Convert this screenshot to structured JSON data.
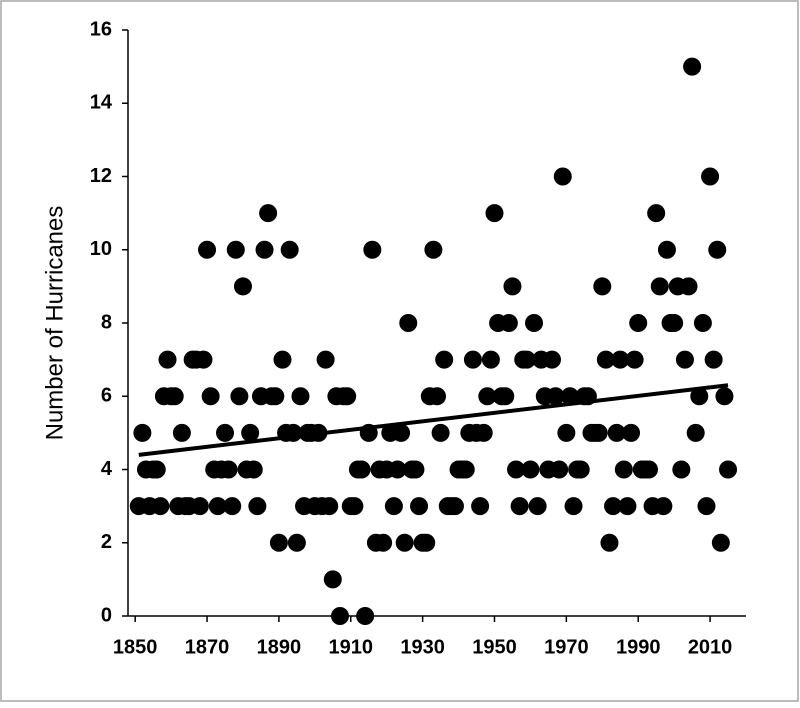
{
  "chart_data": {
    "type": "scatter",
    "ylabel": "Number of Hurricanes",
    "xlim": [
      1848,
      2020
    ],
    "ylim": [
      0,
      16
    ],
    "xticks": [
      1850,
      1870,
      1890,
      1910,
      1930,
      1950,
      1970,
      1990,
      2010
    ],
    "yticks": [
      0,
      2,
      4,
      6,
      8,
      10,
      12,
      14,
      16
    ],
    "series": [
      {
        "type": "scatter",
        "color": "#000000",
        "x": [
          1851,
          1852,
          1853,
          1854,
          1855,
          1856,
          1857,
          1858,
          1859,
          1860,
          1861,
          1862,
          1863,
          1864,
          1865,
          1866,
          1867,
          1868,
          1869,
          1870,
          1871,
          1872,
          1873,
          1874,
          1875,
          1876,
          1877,
          1878,
          1879,
          1880,
          1881,
          1882,
          1883,
          1884,
          1885,
          1886,
          1887,
          1888,
          1889,
          1890,
          1891,
          1892,
          1893,
          1894,
          1895,
          1896,
          1897,
          1898,
          1899,
          1900,
          1901,
          1902,
          1903,
          1904,
          1905,
          1906,
          1907,
          1908,
          1909,
          1910,
          1911,
          1912,
          1913,
          1914,
          1915,
          1916,
          1917,
          1918,
          1919,
          1920,
          1921,
          1922,
          1923,
          1924,
          1925,
          1926,
          1927,
          1928,
          1929,
          1930,
          1931,
          1932,
          1933,
          1934,
          1935,
          1936,
          1937,
          1938,
          1939,
          1940,
          1941,
          1942,
          1943,
          1944,
          1945,
          1946,
          1947,
          1948,
          1949,
          1950,
          1951,
          1952,
          1953,
          1954,
          1955,
          1956,
          1957,
          1958,
          1959,
          1960,
          1961,
          1962,
          1963,
          1964,
          1965,
          1966,
          1967,
          1968,
          1969,
          1970,
          1971,
          1972,
          1973,
          1974,
          1975,
          1976,
          1977,
          1978,
          1979,
          1980,
          1981,
          1982,
          1983,
          1984,
          1985,
          1986,
          1987,
          1988,
          1989,
          1990,
          1991,
          1992,
          1993,
          1994,
          1995,
          1996,
          1997,
          1998,
          1999,
          2000,
          2001,
          2002,
          2003,
          2004,
          2005,
          2006,
          2007,
          2008,
          2009,
          2010,
          2011,
          2012,
          2013,
          2014,
          2015
        ],
        "values": [
          3,
          5,
          4,
          3,
          4,
          4,
          3,
          6,
          7,
          6,
          6,
          3,
          5,
          3,
          3,
          7,
          7,
          3,
          7,
          10,
          6,
          4,
          3,
          4,
          5,
          4,
          3,
          10,
          6,
          9,
          4,
          5,
          4,
          3,
          6,
          10,
          11,
          6,
          6,
          2,
          7,
          5,
          10,
          5,
          2,
          6,
          3,
          5,
          5,
          3,
          5,
          3,
          7,
          3,
          1,
          6,
          0,
          6,
          6,
          3,
          3,
          4,
          4,
          0,
          5,
          10,
          2,
          4,
          2,
          4,
          5,
          3,
          4,
          5,
          2,
          8,
          4,
          4,
          3,
          2,
          2,
          6,
          10,
          6,
          5,
          7,
          3,
          3,
          3,
          4,
          4,
          4,
          5,
          7,
          5,
          3,
          5,
          6,
          7,
          11,
          8,
          6,
          6,
          8,
          9,
          4,
          3,
          7,
          7,
          4,
          8,
          3,
          7,
          6,
          4,
          7,
          6,
          4,
          12,
          5,
          6,
          3,
          4,
          4,
          6,
          6,
          5,
          5,
          5,
          9,
          7,
          2,
          3,
          5,
          7,
          4,
          3,
          5,
          7,
          8,
          4,
          4,
          4,
          3,
          11,
          9,
          3,
          10,
          8,
          8,
          9,
          4,
          7,
          9,
          15,
          5,
          6,
          8,
          3,
          12,
          7,
          10,
          2,
          6,
          4
        ]
      },
      {
        "type": "line",
        "color": "#000000",
        "x": [
          1851,
          2015
        ],
        "values": [
          4.4,
          6.3
        ]
      }
    ]
  }
}
